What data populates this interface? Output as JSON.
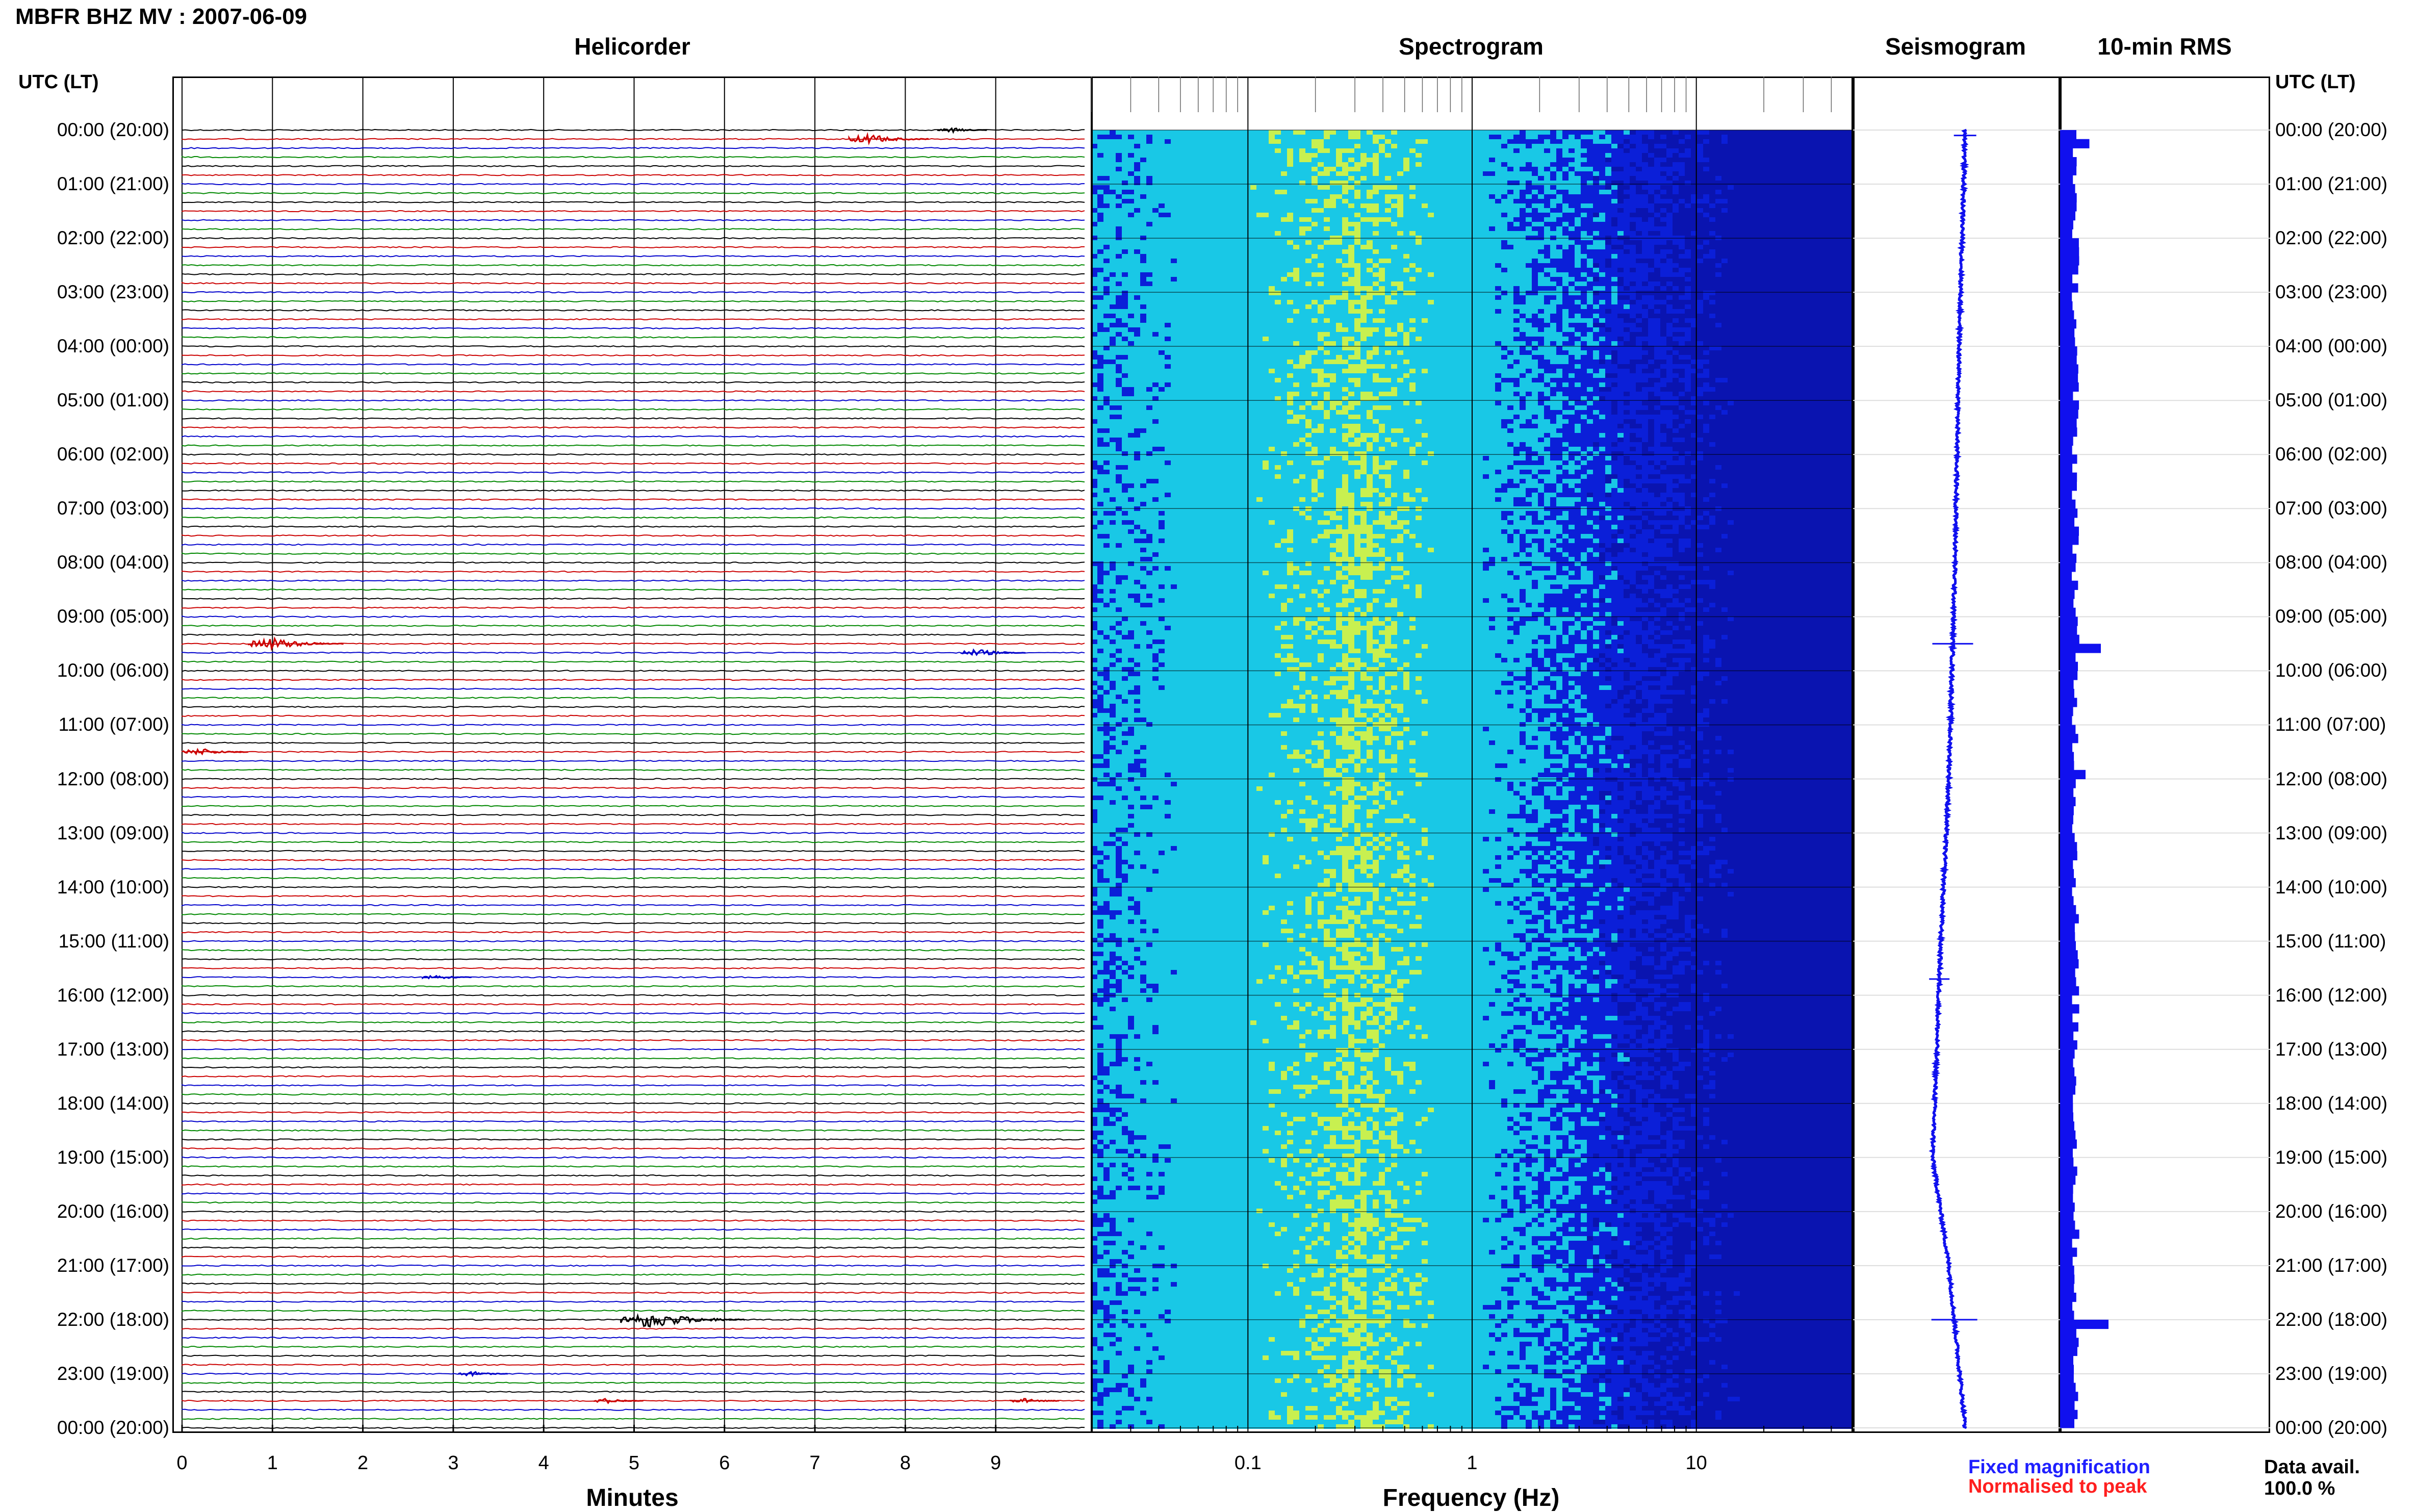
{
  "header": {
    "title": "MBFR BHZ MV : 2007-06-09",
    "utc_header": "UTC (LT)"
  },
  "panels": {
    "helicorder": "Helicorder",
    "spectrogram": "Spectrogram",
    "seismogram": "Seismogram",
    "rms": "10-min RMS"
  },
  "time_labels": [
    "00:00 (20:00)",
    "01:00 (21:00)",
    "02:00 (22:00)",
    "03:00 (23:00)",
    "04:00 (00:00)",
    "05:00 (01:00)",
    "06:00 (02:00)",
    "07:00 (03:00)",
    "08:00 (04:00)",
    "09:00 (05:00)",
    "10:00 (06:00)",
    "11:00 (07:00)",
    "12:00 (08:00)",
    "13:00 (09:00)",
    "14:00 (10:00)",
    "15:00 (11:00)",
    "16:00 (12:00)",
    "17:00 (13:00)",
    "18:00 (14:00)",
    "19:00 (15:00)",
    "20:00 (16:00)",
    "21:00 (17:00)",
    "22:00 (18:00)",
    "23:00 (19:00)",
    "00:00 (20:00)"
  ],
  "axes": {
    "minutes_title": "Minutes",
    "minute_ticks": [
      "0",
      "1",
      "2",
      "3",
      "4",
      "5",
      "6",
      "7",
      "8",
      "9"
    ],
    "frequency_title": "Frequency (Hz)",
    "frequency_ticks": [
      "0.1",
      "1",
      "10"
    ]
  },
  "legend": {
    "fixed": "Fixed magnification",
    "normalised": "Normalised to peak",
    "fixed_color": "#1f1fff",
    "normalised_color": "#ff1f1f"
  },
  "data_availability": {
    "label": "Data avail.",
    "value": "100.0 %"
  },
  "colors": {
    "trace_cycle": [
      "#000000",
      "#cc0000",
      "#0000cc",
      "#008800"
    ],
    "spectrogram_low": "#0b1fd8",
    "spectrogram_mid": "#19c8e6",
    "spectrogram_high": "#c8f050",
    "rms_bar": "#1010ee"
  },
  "chart_data": [
    {
      "type": "line",
      "title": "Helicorder",
      "xlabel": "Minutes",
      "xlim": [
        0,
        10
      ],
      "rows_per_hour": 6,
      "row_minutes": 10,
      "events": [
        {
          "hour": 0,
          "row": 0,
          "minute": 8.5,
          "amplitude": 2
        },
        {
          "hour": 0,
          "row": 1,
          "minute": 7.6,
          "amplitude": 4
        },
        {
          "hour": 9,
          "row": 3,
          "minute": 1.0,
          "amplitude": 5
        },
        {
          "hour": 9,
          "row": 4,
          "minute": 8.8,
          "amplitude": 3
        },
        {
          "hour": 11,
          "row": 3,
          "minute": 0.2,
          "amplitude": 3
        },
        {
          "hour": 15,
          "row": 4,
          "minute": 2.8,
          "amplitude": 2
        },
        {
          "hour": 22,
          "row": 0,
          "minute": 5.2,
          "amplitude": 7
        },
        {
          "hour": 23,
          "row": 0,
          "minute": 3.2,
          "amplitude": 2
        },
        {
          "hour": 23,
          "row": 3,
          "minute": 4.7,
          "amplitude": 2
        },
        {
          "hour": 23,
          "row": 3,
          "minute": 9.3,
          "amplitude": 2
        }
      ]
    },
    {
      "type": "heatmap",
      "title": "Spectrogram",
      "xlabel": "Frequency (Hz)",
      "xscale": "log",
      "xlim": [
        0.02,
        50
      ],
      "peak_frequency": 0.25
    },
    {
      "type": "line",
      "title": "Seismogram",
      "description_points_hours": [
        0,
        4,
        8,
        12,
        15,
        19,
        21,
        24
      ],
      "offset_relative": [
        0.0,
        -0.03,
        -0.05,
        -0.08,
        -0.12,
        -0.16,
        -0.08,
        0.0
      ]
    },
    {
      "type": "bar",
      "title": "10-min RMS",
      "orientation": "horizontal",
      "spikes": [
        {
          "hour": 0.1,
          "value": 2.3
        },
        {
          "hour": 9.5,
          "value": 3.2
        },
        {
          "hour": 11.8,
          "value": 2.0
        },
        {
          "hour": 22.0,
          "value": 3.8
        }
      ],
      "baseline": 1.1
    }
  ]
}
